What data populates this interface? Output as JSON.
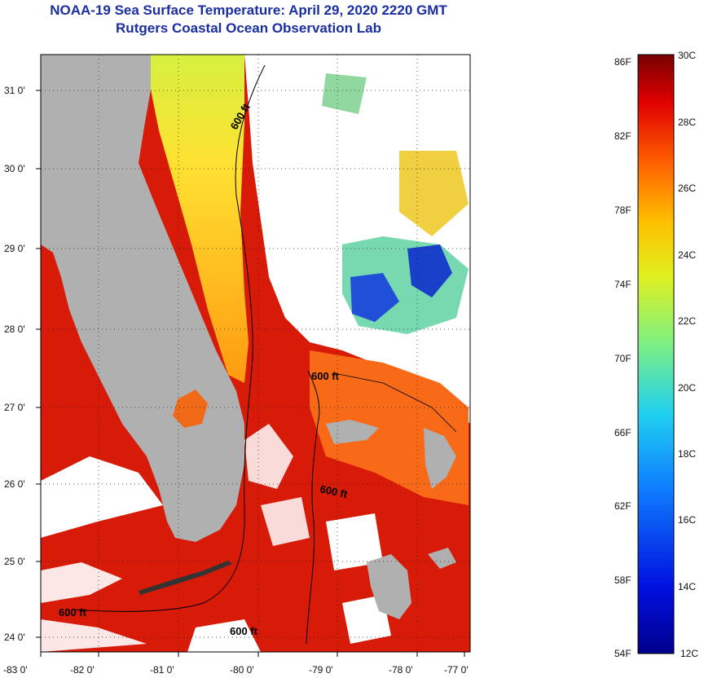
{
  "title": "NOAA-19 Sea Surface Temperature:  April 29, 2020 2220 GMT",
  "subtitle": "Rutgers Coastal Ocean Observation Lab",
  "map": {
    "lon_labels": [
      "-83 0'",
      "-82 0'",
      "-81 0'",
      "-80 0'",
      "-79 0'",
      "-78 0'",
      "-77 0'"
    ],
    "lat_labels": [
      "31 0'",
      "30 0'",
      "29 0'",
      "28 0'",
      "27 0'",
      "26 0'",
      "25 0'",
      "24 0'"
    ],
    "contour_label": "600 ft",
    "colors": {
      "land": "#b0b0b0",
      "cloud": "#ffffff",
      "warm": "#e0200a",
      "hot": "#c81004",
      "orange": "#ff7010",
      "yellow": "#ffd020",
      "green": "#a8e060",
      "cyan": "#50d0e0",
      "blue": "#1040d0"
    }
  },
  "colorbar": {
    "fahrenheit_labels": [
      "86F",
      "82F",
      "78F",
      "74F",
      "70F",
      "66F",
      "62F",
      "58F",
      "54F"
    ],
    "celsius_labels": [
      "30C",
      "28C",
      "26C",
      "24C",
      "22C",
      "20C",
      "18C",
      "16C",
      "14C",
      "12C"
    ],
    "range_c": [
      12,
      30
    ],
    "range_f": [
      54,
      86
    ]
  }
}
